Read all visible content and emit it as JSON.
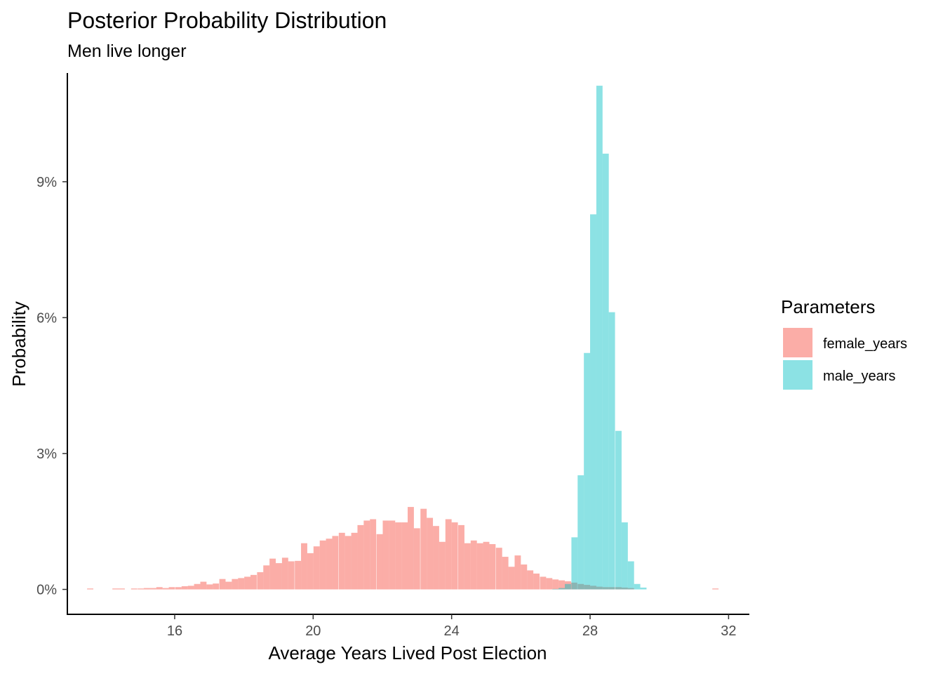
{
  "chart_data": {
    "type": "histogram",
    "title": "Posterior Probability Distribution",
    "subtitle": "Men live longer",
    "xlabel": "Average Years Lived Post Election",
    "ylabel": "Probability",
    "xlim": [
      12.9,
      32.6
    ],
    "ylim": [
      -0.55,
      11.4
    ],
    "x_ticks": [
      16,
      20,
      24,
      28,
      32
    ],
    "x_tick_labels": [
      "16",
      "20",
      "24",
      "28",
      "32"
    ],
    "y_ticks": [
      0,
      3,
      6,
      9
    ],
    "y_tick_labels": [
      "0%",
      "3%",
      "6%",
      "9%"
    ],
    "y_unit": "percent",
    "bin_width": 0.18,
    "grid": false,
    "legend": {
      "title": "Parameters",
      "position": "right"
    },
    "series": [
      {
        "name": "female_years",
        "color": "#F8766D",
        "opacity": 0.6,
        "bins": [
          [
            13.56,
            0.02
          ],
          [
            14.29,
            0.02
          ],
          [
            14.47,
            0.02
          ],
          [
            14.83,
            0.02
          ],
          [
            15.02,
            0.02
          ],
          [
            15.2,
            0.03
          ],
          [
            15.38,
            0.03
          ],
          [
            15.56,
            0.05
          ],
          [
            15.74,
            0.03
          ],
          [
            15.92,
            0.05
          ],
          [
            16.11,
            0.05
          ],
          [
            16.29,
            0.07
          ],
          [
            16.47,
            0.08
          ],
          [
            16.65,
            0.12
          ],
          [
            16.83,
            0.17
          ],
          [
            17.01,
            0.11
          ],
          [
            17.19,
            0.13
          ],
          [
            17.38,
            0.23
          ],
          [
            17.56,
            0.17
          ],
          [
            17.74,
            0.23
          ],
          [
            17.92,
            0.25
          ],
          [
            18.1,
            0.28
          ],
          [
            18.28,
            0.32
          ],
          [
            18.47,
            0.38
          ],
          [
            18.65,
            0.53
          ],
          [
            18.83,
            0.68
          ],
          [
            19.01,
            0.58
          ],
          [
            19.19,
            0.7
          ],
          [
            19.37,
            0.62
          ],
          [
            19.56,
            0.63
          ],
          [
            19.74,
            1.02
          ],
          [
            19.92,
            0.8
          ],
          [
            20.1,
            0.95
          ],
          [
            20.28,
            1.08
          ],
          [
            20.46,
            1.12
          ],
          [
            20.64,
            1.18
          ],
          [
            20.83,
            1.25
          ],
          [
            21.01,
            1.18
          ],
          [
            21.19,
            1.25
          ],
          [
            21.37,
            1.42
          ],
          [
            21.55,
            1.52
          ],
          [
            21.73,
            1.55
          ],
          [
            21.92,
            1.22
          ],
          [
            22.1,
            1.52
          ],
          [
            22.28,
            1.52
          ],
          [
            22.46,
            1.48
          ],
          [
            22.64,
            1.48
          ],
          [
            22.82,
            1.82
          ],
          [
            23.0,
            1.35
          ],
          [
            23.19,
            1.78
          ],
          [
            23.37,
            1.58
          ],
          [
            23.55,
            1.4
          ],
          [
            23.73,
            1.05
          ],
          [
            23.91,
            1.55
          ],
          [
            24.09,
            1.48
          ],
          [
            24.28,
            1.42
          ],
          [
            24.46,
            1.02
          ],
          [
            24.64,
            1.08
          ],
          [
            24.82,
            1.02
          ],
          [
            25.0,
            1.05
          ],
          [
            25.18,
            1.0
          ],
          [
            25.37,
            0.92
          ],
          [
            25.55,
            0.72
          ],
          [
            25.73,
            0.5
          ],
          [
            25.91,
            0.75
          ],
          [
            26.09,
            0.55
          ],
          [
            26.27,
            0.42
          ],
          [
            26.45,
            0.35
          ],
          [
            26.64,
            0.28
          ],
          [
            26.82,
            0.25
          ],
          [
            27.0,
            0.22
          ],
          [
            27.18,
            0.2
          ],
          [
            27.36,
            0.18
          ],
          [
            27.54,
            0.15
          ],
          [
            27.73,
            0.12
          ],
          [
            27.91,
            0.1
          ],
          [
            28.09,
            0.08
          ],
          [
            28.27,
            0.06
          ],
          [
            28.45,
            0.05
          ],
          [
            28.63,
            0.05
          ],
          [
            28.82,
            0.05
          ],
          [
            29.0,
            0.04
          ],
          [
            29.18,
            0.03
          ],
          [
            31.62,
            0.02
          ]
        ]
      },
      {
        "name": "male_years",
        "color": "#00BFC4",
        "opacity": 0.45,
        "bins": [
          [
            27.0,
            0.01
          ],
          [
            27.18,
            0.03
          ],
          [
            27.36,
            0.12
          ],
          [
            27.55,
            1.15
          ],
          [
            27.73,
            2.52
          ],
          [
            27.91,
            5.22
          ],
          [
            28.09,
            8.28
          ],
          [
            28.27,
            11.12
          ],
          [
            28.45,
            9.62
          ],
          [
            28.63,
            6.12
          ],
          [
            28.82,
            3.5
          ],
          [
            29.0,
            1.48
          ],
          [
            29.18,
            0.62
          ],
          [
            29.36,
            0.12
          ],
          [
            29.54,
            0.04
          ]
        ]
      }
    ]
  }
}
